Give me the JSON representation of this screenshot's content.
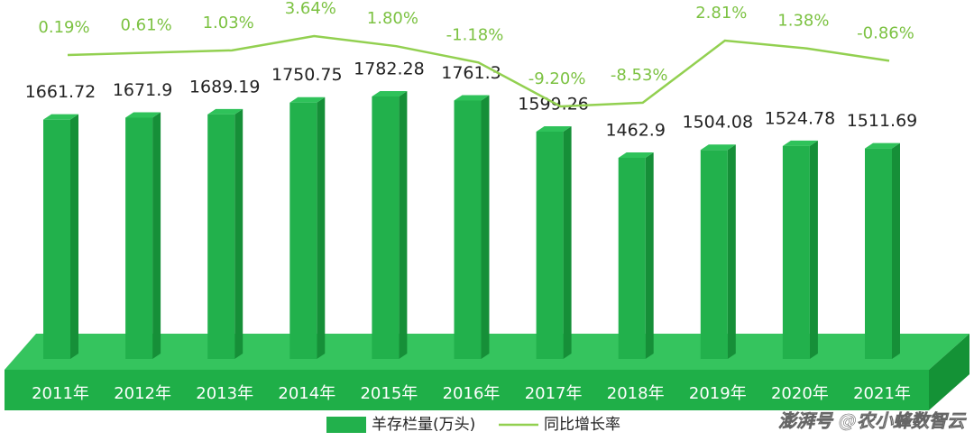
{
  "chart_data": {
    "type": "bar-line",
    "categories": [
      "2011年",
      "2012年",
      "2013年",
      "2014年",
      "2015年",
      "2016年",
      "2017年",
      "2018年",
      "2019年",
      "2020年",
      "2021年"
    ],
    "series": [
      {
        "name": "羊存栏量(万头)",
        "type": "bar",
        "color": "#22b14c",
        "values": [
          1661.72,
          1671.9,
          1689.19,
          1750.75,
          1782.28,
          1761.3,
          1599.26,
          1462.9,
          1504.08,
          1524.78,
          1511.69
        ]
      },
      {
        "name": "同比增长率",
        "type": "line",
        "axis": "y2",
        "color": "#92d050",
        "values": [
          0.19,
          0.61,
          1.03,
          3.64,
          1.8,
          -1.18,
          -9.2,
          -8.53,
          2.81,
          1.38,
          -0.86
        ],
        "value_labels": [
          "0.19%",
          "0.61%",
          "1.03%",
          "3.64%",
          "1.80%",
          "-1.18%",
          "-9.20%",
          "-8.53%",
          "2.81%",
          "1.38%",
          "-0.86%"
        ]
      }
    ],
    "watermark": "澎湃号 @农小蜂数智云"
  }
}
